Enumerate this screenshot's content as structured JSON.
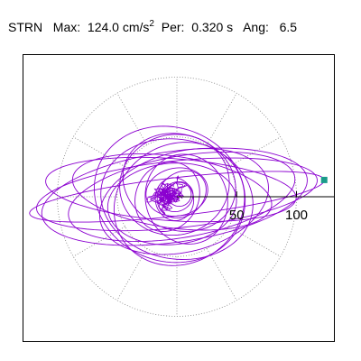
{
  "header": {
    "component": "STRN",
    "max_label": "Max:",
    "max_value": "124.0",
    "max_unit": "cm/s",
    "max_unit_exp": "2",
    "per_label": "Per:",
    "per_value": "0.320",
    "per_unit": "s",
    "ang_label": "Ang:",
    "ang_value": "6.5"
  },
  "chart_data": {
    "type": "line",
    "subtype": "polar-orbit",
    "radial_ticks": [
      50,
      100
    ],
    "radial_tick_labels": [
      "50",
      "100"
    ],
    "rings": [
      50,
      100
    ],
    "spokes_deg": [
      0,
      30,
      60,
      90,
      120,
      150,
      180,
      210,
      240,
      270,
      300,
      330
    ],
    "peak_value": 124.0,
    "peak_angle_deg": 6.5,
    "grid": true,
    "colors": {
      "trace": "#8b00d0",
      "marker": "#1a9b8a",
      "grid": "#808080",
      "axis": "#000000",
      "frame": "#000000"
    },
    "series": [
      {
        "ellipses": [
          [
            0,
            0,
            124,
            16,
            6.5
          ],
          [
            0,
            2,
            118,
            28,
            6
          ],
          [
            -2,
            0,
            112,
            38,
            8
          ],
          [
            -5,
            6,
            105,
            26,
            -4
          ],
          [
            4,
            0,
            96,
            34,
            10
          ],
          [
            -4,
            4,
            84,
            30,
            -8
          ],
          [
            6,
            -4,
            72,
            42,
            14
          ],
          [
            -6,
            2,
            64,
            56,
            -20
          ],
          [
            2,
            -6,
            56,
            50,
            30
          ],
          [
            0,
            -2,
            50,
            64,
            80
          ],
          [
            -2,
            10,
            46,
            42,
            12
          ],
          [
            -4,
            -6,
            54,
            34,
            5
          ],
          [
            2,
            12,
            40,
            48,
            70
          ],
          [
            8,
            -2,
            34,
            38,
            20
          ],
          [
            -8,
            0,
            30,
            26,
            60
          ],
          [
            0,
            4,
            26,
            20,
            10
          ],
          [
            4,
            2,
            22,
            18,
            40
          ],
          [
            -2,
            -2,
            18,
            16,
            100
          ],
          [
            0,
            0,
            14,
            12,
            30
          ],
          [
            2,
            2,
            10,
            10,
            0
          ]
        ]
      }
    ]
  }
}
